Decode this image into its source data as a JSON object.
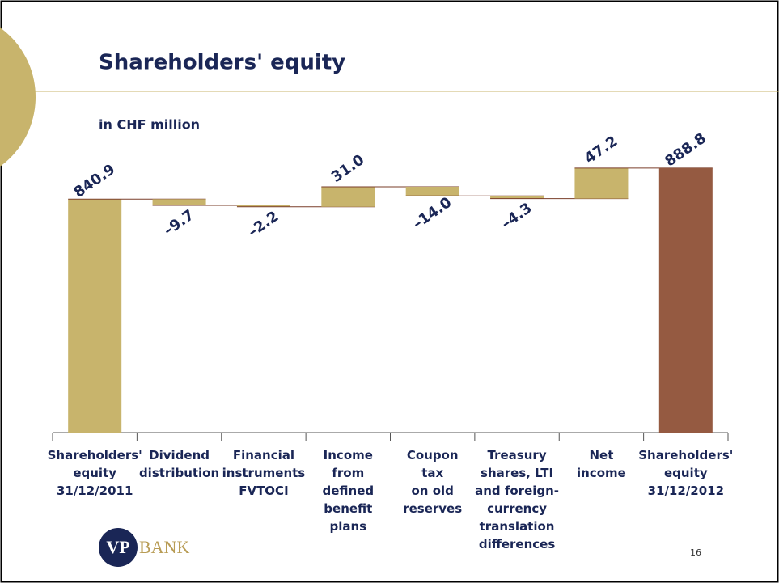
{
  "chart_data": {
    "type": "waterfall",
    "title": "Shareholders' equity",
    "subtitle": "in CHF million",
    "categories": [
      "Shareholders'\nequity\n31/12/2011",
      "Dividend\ndistribution",
      "Financial\ninstruments\nFVTOCI",
      "Income\nfrom\ndefined\nbenefit\nplans",
      "Coupon\ntax\non old\nreserves",
      "Treasury\nshares, LTI\nand foreign-\ncurrency\ntranslation\ndifferences",
      "Net\nincome",
      "Shareholders'\nequity\n31/12/2012"
    ],
    "values": [
      840.9,
      -9.7,
      -2.2,
      31.0,
      -14.0,
      -4.3,
      47.2,
      888.8
    ],
    "value_labels": [
      "840.9",
      "–9.7",
      "–2.2",
      "31.0",
      "–14.0",
      "–4.3",
      "47.2",
      "888.8"
    ],
    "colors": [
      "#c8b46c",
      "#c8b46c",
      "#c8b46c",
      "#c8b46c",
      "#c8b46c",
      "#c8b46c",
      "#c8b46c",
      "#955a41"
    ],
    "ylim": [
      480,
      900
    ]
  },
  "page": {
    "number": "16",
    "logo_mark": "VP",
    "logo_text": "BANK"
  }
}
